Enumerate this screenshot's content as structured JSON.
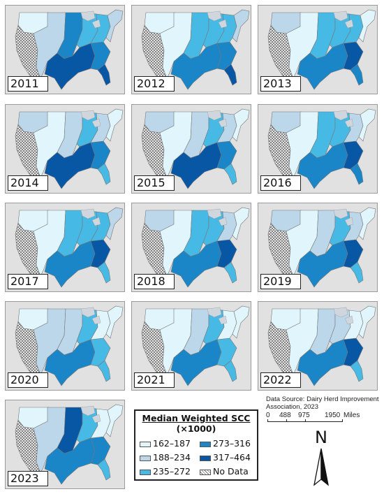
{
  "colors": {
    "c1": "#e1f6fc",
    "c2": "#bcd7ea",
    "c3": "#47b9e5",
    "c4": "#1a86c8",
    "c5": "#0857a4",
    "nodata": "hatched",
    "outside": "#e1e1e1"
  },
  "years": [
    {
      "label": "2011",
      "region_classes": {
        "pnw": "c1",
        "west": "nodata",
        "mtn": "c2",
        "plains": "c4",
        "mid": "c3",
        "south": "c5",
        "se": "c4",
        "fl": "c5",
        "ne": "c2",
        "ohio": "c3"
      }
    },
    {
      "label": "2012",
      "region_classes": {
        "pnw": "c1",
        "west": "nodata",
        "mtn": "c1",
        "plains": "c3",
        "mid": "c3",
        "south": "c4",
        "se": "c4",
        "fl": "c5",
        "ne": "c2",
        "ohio": "c3"
      }
    },
    {
      "label": "2013",
      "region_classes": {
        "pnw": "c2",
        "west": "nodata",
        "mtn": "c1",
        "plains": "c3",
        "mid": "c3",
        "south": "c4",
        "se": "c5",
        "fl": "c4",
        "ne": "c1",
        "ohio": "c3"
      }
    },
    {
      "label": "2014",
      "region_classes": {
        "pnw": "c2",
        "west": "nodata",
        "mtn": "c1",
        "plains": "c2",
        "mid": "c3",
        "south": "c5",
        "se": "c4",
        "fl": "c3",
        "ne": "c1",
        "ohio": "c2"
      }
    },
    {
      "label": "2015",
      "region_classes": {
        "pnw": "c2",
        "west": "nodata",
        "mtn": "c1",
        "plains": "c2",
        "mid": "c3",
        "south": "c5",
        "se": "c4",
        "fl": "c3",
        "ne": "c1",
        "ohio": "c2"
      }
    },
    {
      "label": "2016",
      "region_classes": {
        "pnw": "c2",
        "west": "nodata",
        "mtn": "c1",
        "plains": "c3",
        "mid": "c3",
        "south": "c4",
        "se": "c5",
        "fl": "c4",
        "ne": "c1",
        "ohio": "c2"
      }
    },
    {
      "label": "2017",
      "region_classes": {
        "pnw": "c1",
        "west": "nodata",
        "mtn": "c1",
        "plains": "c3",
        "mid": "c3",
        "south": "c4",
        "se": "c5",
        "fl": "c3",
        "ne": "c2",
        "ohio": "c3"
      }
    },
    {
      "label": "2018",
      "region_classes": {
        "pnw": "c2",
        "west": "nodata",
        "mtn": "c1",
        "plains": "c3",
        "mid": "c3",
        "south": "c4",
        "se": "c5",
        "fl": "c3",
        "ne": "c1",
        "ohio": "c2"
      }
    },
    {
      "label": "2019",
      "region_classes": {
        "pnw": "c2",
        "west": "nodata",
        "mtn": "c1",
        "plains": "c2",
        "mid": "c3",
        "south": "c4",
        "se": "c5",
        "fl": "c3",
        "ne": "c1",
        "ohio": "c2"
      }
    },
    {
      "label": "2020",
      "region_classes": {
        "pnw": "c1",
        "west": "nodata",
        "mtn": "c2",
        "plains": "c2",
        "mid": "c3",
        "south": "c4",
        "se": "c3",
        "fl": "c3",
        "ne": "c1",
        "ohio": "c1"
      }
    },
    {
      "label": "2021",
      "region_classes": {
        "pnw": "c1",
        "west": "nodata",
        "mtn": "c1",
        "plains": "c2",
        "mid": "c3",
        "south": "c4",
        "se": "c3",
        "fl": "c3",
        "ne": "c1",
        "ohio": "c1"
      }
    },
    {
      "label": "2022",
      "region_classes": {
        "pnw": "c1",
        "west": "nodata",
        "mtn": "c1",
        "plains": "c2",
        "mid": "c2",
        "south": "c4",
        "se": "c5",
        "fl": "c3",
        "ne": "c1",
        "ohio": "c1"
      }
    },
    {
      "label": "2023",
      "region_classes": {
        "pnw": "c1",
        "west": "nodata",
        "mtn": "c2",
        "plains": "c5",
        "mid": "c3",
        "south": "c4",
        "se": "c4",
        "fl": "c3",
        "ne": "c1",
        "ohio": "c1"
      }
    }
  ],
  "legend": {
    "title_line1": "Median Weighted SCC",
    "title_line2": "(×1000)",
    "items": [
      {
        "label": "162–187",
        "class": "c1"
      },
      {
        "label": "273–316",
        "class": "c4"
      },
      {
        "label": "188–234",
        "class": "c2"
      },
      {
        "label": "317–464",
        "class": "c5"
      },
      {
        "label": "235–272",
        "class": "c3"
      },
      {
        "label": "No Data",
        "class": "nodata"
      }
    ]
  },
  "source": {
    "line1": "Data Source: Dairy Herd Improvement",
    "line2": "Association, 2023"
  },
  "scale": {
    "labels": [
      "0",
      "488",
      "975",
      "1950"
    ],
    "unit": "Miles"
  },
  "north_label": "N"
}
